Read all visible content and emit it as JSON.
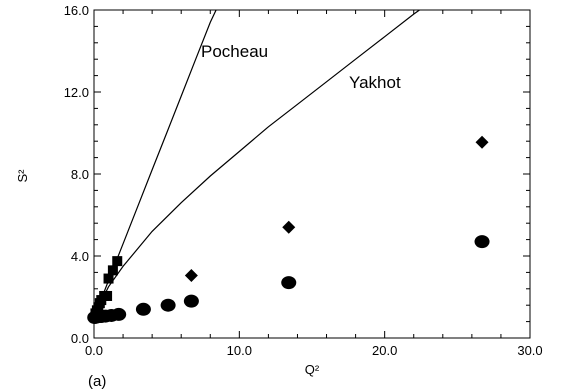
{
  "chart_data": {
    "type": "scatter",
    "xlabel": "Q²",
    "ylabel": "S²",
    "xlim": [
      0,
      30
    ],
    "ylim": [
      0,
      16
    ],
    "x_ticks": [
      "0.0",
      "10.0",
      "20.0",
      "30.0"
    ],
    "y_ticks": [
      "0.0",
      "4.0",
      "8.0",
      "12.0",
      "16.0"
    ],
    "panel_label": "(a)",
    "grid": false,
    "curves": [
      {
        "name": "Pocheau",
        "points": [
          [
            0,
            1.0
          ],
          [
            0.25,
            1.25
          ],
          [
            0.5,
            1.9
          ],
          [
            1,
            2.8
          ],
          [
            2,
            4.6
          ],
          [
            3,
            6.4
          ],
          [
            4,
            8.2
          ],
          [
            5,
            10.0
          ],
          [
            6,
            11.8
          ],
          [
            7,
            13.6
          ],
          [
            8,
            15.4
          ],
          [
            8.4,
            16.0
          ]
        ]
      },
      {
        "name": "Yakhot",
        "points": [
          [
            0,
            1.0
          ],
          [
            0.1,
            1.05
          ],
          [
            0.25,
            1.4
          ],
          [
            0.5,
            1.8
          ],
          [
            1,
            2.5
          ],
          [
            2,
            3.5
          ],
          [
            4,
            5.2
          ],
          [
            6,
            6.6
          ],
          [
            8,
            7.9
          ],
          [
            10,
            9.1
          ],
          [
            12,
            10.3
          ],
          [
            14,
            11.4
          ],
          [
            16,
            12.5
          ],
          [
            18,
            13.6
          ],
          [
            20,
            14.7
          ],
          [
            22,
            15.8
          ],
          [
            22.4,
            16.0
          ]
        ]
      }
    ],
    "series": [
      {
        "marker": "square",
        "points": [
          [
            0.1,
            1.2
          ],
          [
            0.2,
            1.35
          ],
          [
            0.3,
            1.5
          ],
          [
            0.4,
            1.7
          ],
          [
            0.5,
            1.85
          ],
          [
            0.7,
            2.05
          ],
          [
            0.9,
            2.05
          ],
          [
            1.0,
            2.9
          ],
          [
            1.3,
            3.3
          ],
          [
            1.6,
            3.75
          ]
        ]
      },
      {
        "marker": "diamond",
        "points": [
          [
            6.7,
            3.05
          ],
          [
            13.4,
            5.4
          ],
          [
            26.7,
            9.55
          ]
        ]
      },
      {
        "marker": "circle",
        "points": [
          [
            0.05,
            1.0
          ],
          [
            0.15,
            1.02
          ],
          [
            0.3,
            1.04
          ],
          [
            0.5,
            1.05
          ],
          [
            0.8,
            1.07
          ],
          [
            1.2,
            1.1
          ],
          [
            1.7,
            1.15
          ],
          [
            3.4,
            1.4
          ],
          [
            5.1,
            1.6
          ],
          [
            6.7,
            1.8
          ],
          [
            13.4,
            2.7
          ],
          [
            26.7,
            4.7
          ]
        ]
      }
    ]
  }
}
